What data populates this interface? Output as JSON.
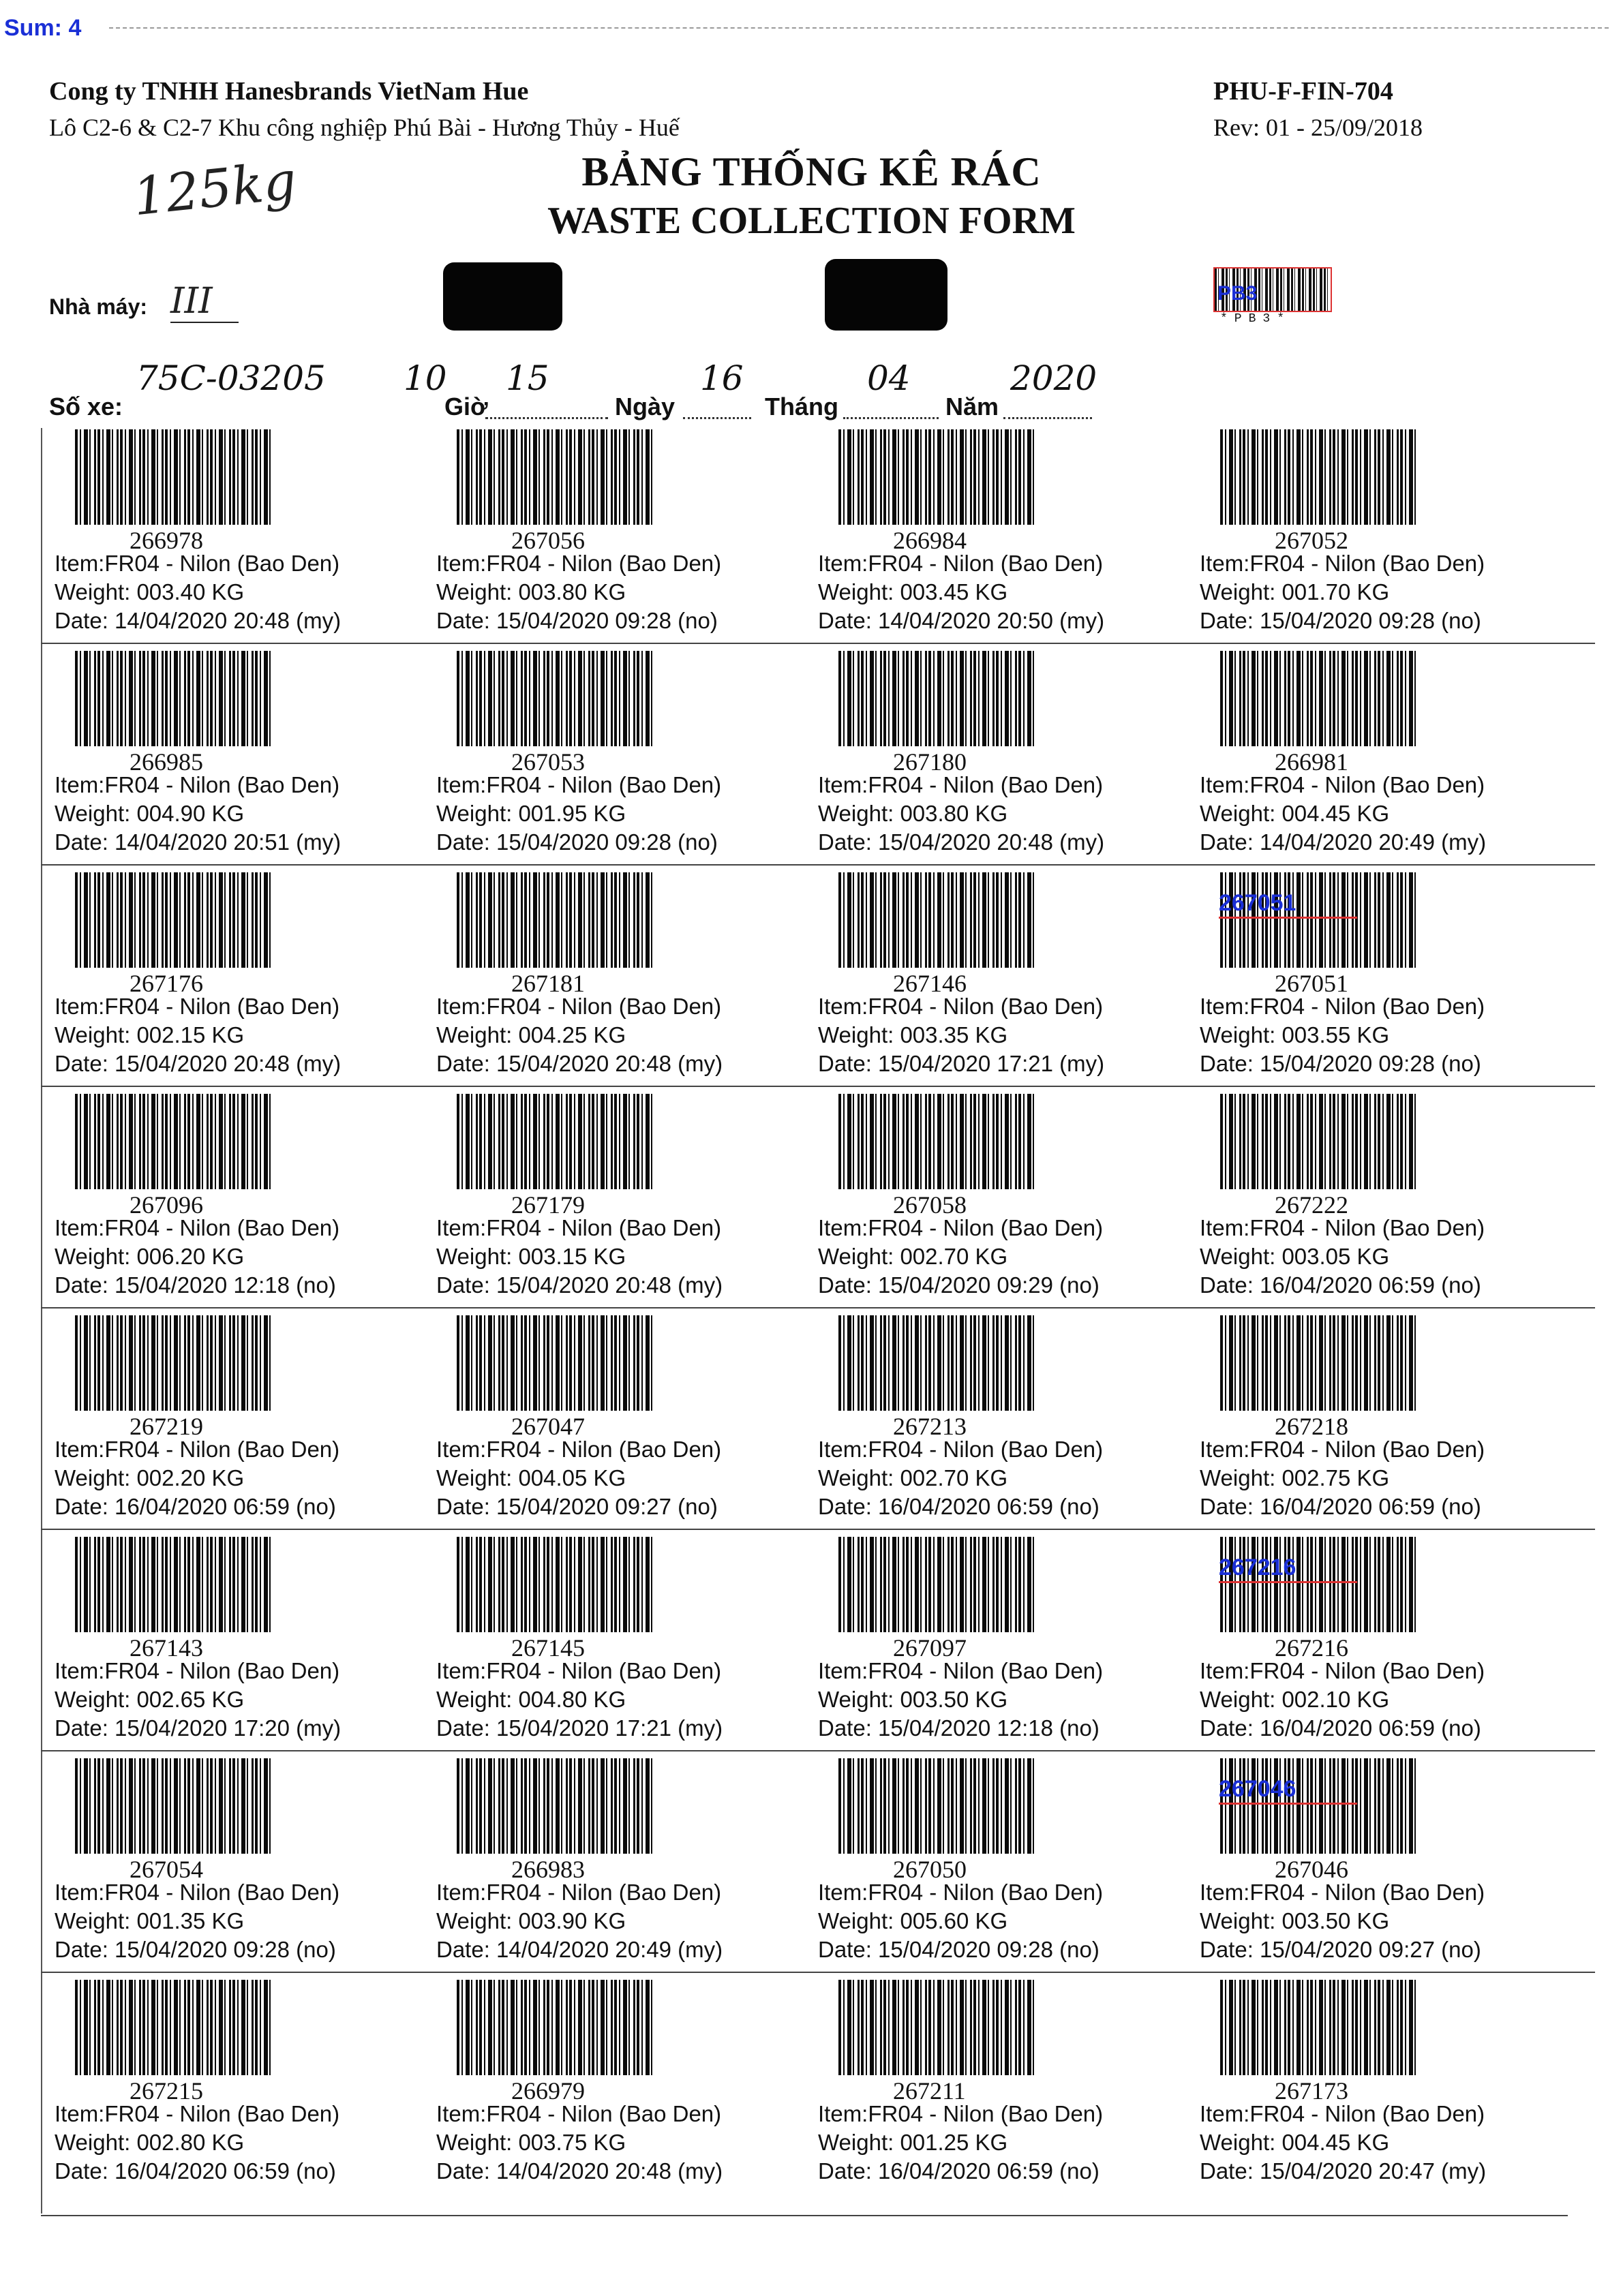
{
  "stamp": {
    "sum": "Sum: 4"
  },
  "header": {
    "company": "Cong ty TNHH Hanesbrands VietNam Hue",
    "address": "Lô C2-6 & C2-7 Khu  công nghiệp Phú Bài - Hương Thủy - Huế",
    "form_code": "PHU-F-FIN-704",
    "revision": "Rev: 01 - 25/09/2018",
    "title_vn": "BẢNG THỐNG KÊ RÁC",
    "title_en": "WASTE COLLECTION FORM",
    "total_weight_handwritten": "125kg"
  },
  "factory": {
    "label": "Nhà máy:",
    "value": "III",
    "barcode_overlay": "PB3",
    "barcode_caption": "*PB3*"
  },
  "vehicle": {
    "plate_label": "Số xe:",
    "plate_value": "75C-03205",
    "hour_value": "10",
    "hour_label": "Giờ",
    "minute_value": "15",
    "day_label": "Ngày",
    "day_value": "16",
    "month_label": "Tháng",
    "month_value": "04",
    "year_label": "Năm",
    "year_value": "2020"
  },
  "labels": [
    {
      "code": "266978",
      "item": "Item:FR04 - Nilon (Bao Den)",
      "weight": "Weight: 003.40 KG",
      "date": "Date: 14/04/2020 20:48 (my)",
      "overlay": ""
    },
    {
      "code": "267056",
      "item": "Item:FR04 - Nilon (Bao Den)",
      "weight": "Weight: 003.80 KG",
      "date": "Date: 15/04/2020 09:28 (no)",
      "overlay": ""
    },
    {
      "code": "266984",
      "item": "Item:FR04 - Nilon (Bao Den)",
      "weight": "Weight: 003.45 KG",
      "date": "Date: 14/04/2020 20:50 (my)",
      "overlay": ""
    },
    {
      "code": "267052",
      "item": "Item:FR04 - Nilon (Bao Den)",
      "weight": "Weight: 001.70 KG",
      "date": "Date: 15/04/2020 09:28 (no)",
      "overlay": ""
    },
    {
      "code": "266985",
      "item": "Item:FR04 - Nilon (Bao Den)",
      "weight": "Weight: 004.90 KG",
      "date": "Date: 14/04/2020 20:51 (my)",
      "overlay": ""
    },
    {
      "code": "267053",
      "item": "Item:FR04 - Nilon (Bao Den)",
      "weight": "Weight: 001.95 KG",
      "date": "Date: 15/04/2020 09:28 (no)",
      "overlay": ""
    },
    {
      "code": "267180",
      "item": "Item:FR04 - Nilon (Bao Den)",
      "weight": "Weight: 003.80 KG",
      "date": "Date: 15/04/2020 20:48 (my)",
      "overlay": ""
    },
    {
      "code": "266981",
      "item": "Item:FR04 - Nilon (Bao Den)",
      "weight": "Weight: 004.45 KG",
      "date": "Date: 14/04/2020 20:49 (my)",
      "overlay": ""
    },
    {
      "code": "267176",
      "item": "Item:FR04 - Nilon (Bao Den)",
      "weight": "Weight: 002.15 KG",
      "date": "Date: 15/04/2020 20:48 (my)",
      "overlay": ""
    },
    {
      "code": "267181",
      "item": "Item:FR04 - Nilon (Bao Den)",
      "weight": "Weight: 004.25 KG",
      "date": "Date: 15/04/2020 20:48 (my)",
      "overlay": ""
    },
    {
      "code": "267146",
      "item": "Item:FR04 - Nilon (Bao Den)",
      "weight": "Weight: 003.35 KG",
      "date": "Date: 15/04/2020 17:21 (my)",
      "overlay": ""
    },
    {
      "code": "267051",
      "item": "Item:FR04 - Nilon (Bao Den)",
      "weight": "Weight: 003.55 KG",
      "date": "Date: 15/04/2020 09:28 (no)",
      "overlay": "267051"
    },
    {
      "code": "267096",
      "item": "Item:FR04 - Nilon (Bao Den)",
      "weight": "Weight: 006.20 KG",
      "date": "Date: 15/04/2020 12:18 (no)",
      "overlay": ""
    },
    {
      "code": "267179",
      "item": "Item:FR04 - Nilon (Bao Den)",
      "weight": "Weight: 003.15 KG",
      "date": "Date: 15/04/2020 20:48 (my)",
      "overlay": ""
    },
    {
      "code": "267058",
      "item": "Item:FR04 - Nilon (Bao Den)",
      "weight": "Weight: 002.70 KG",
      "date": "Date: 15/04/2020 09:29 (no)",
      "overlay": ""
    },
    {
      "code": "267222",
      "item": "Item:FR04 - Nilon (Bao Den)",
      "weight": "Weight: 003.05 KG",
      "date": "Date: 16/04/2020 06:59 (no)",
      "overlay": ""
    },
    {
      "code": "267219",
      "item": "Item:FR04 - Nilon (Bao Den)",
      "weight": "Weight: 002.20 KG",
      "date": "Date: 16/04/2020 06:59 (no)",
      "overlay": ""
    },
    {
      "code": "267047",
      "item": "Item:FR04 - Nilon (Bao Den)",
      "weight": "Weight: 004.05 KG",
      "date": "Date: 15/04/2020 09:27 (no)",
      "overlay": ""
    },
    {
      "code": "267213",
      "item": "Item:FR04 - Nilon (Bao Den)",
      "weight": "Weight: 002.70 KG",
      "date": "Date: 16/04/2020 06:59 (no)",
      "overlay": ""
    },
    {
      "code": "267218",
      "item": "Item:FR04 - Nilon (Bao Den)",
      "weight": "Weight: 002.75 KG",
      "date": "Date: 16/04/2020 06:59 (no)",
      "overlay": ""
    },
    {
      "code": "267143",
      "item": "Item:FR04 - Nilon (Bao Den)",
      "weight": "Weight: 002.65 KG",
      "date": "Date: 15/04/2020 17:20 (my)",
      "overlay": ""
    },
    {
      "code": "267145",
      "item": "Item:FR04 - Nilon (Bao Den)",
      "weight": "Weight: 004.80 KG",
      "date": "Date: 15/04/2020 17:21 (my)",
      "overlay": ""
    },
    {
      "code": "267097",
      "item": "Item:FR04 - Nilon (Bao Den)",
      "weight": "Weight: 003.50 KG",
      "date": "Date: 15/04/2020 12:18 (no)",
      "overlay": ""
    },
    {
      "code": "267216",
      "item": "Item:FR04 - Nilon (Bao Den)",
      "weight": "Weight: 002.10 KG",
      "date": "Date: 16/04/2020 06:59 (no)",
      "overlay": "267216"
    },
    {
      "code": "267054",
      "item": "Item:FR04 - Nilon (Bao Den)",
      "weight": "Weight: 001.35 KG",
      "date": "Date: 15/04/2020 09:28 (no)",
      "overlay": ""
    },
    {
      "code": "266983",
      "item": "Item:FR04 - Nilon (Bao Den)",
      "weight": "Weight: 003.90 KG",
      "date": "Date: 14/04/2020 20:49 (my)",
      "overlay": ""
    },
    {
      "code": "267050",
      "item": "Item:FR04 - Nilon (Bao Den)",
      "weight": "Weight: 005.60 KG",
      "date": "Date: 15/04/2020 09:28 (no)",
      "overlay": ""
    },
    {
      "code": "267046",
      "item": "Item:FR04 - Nilon (Bao Den)",
      "weight": "Weight: 003.50 KG",
      "date": "Date: 15/04/2020 09:27 (no)",
      "overlay": "267046"
    },
    {
      "code": "267215",
      "item": "Item:FR04 - Nilon (Bao Den)",
      "weight": "Weight: 002.80 KG",
      "date": "Date: 16/04/2020 06:59 (no)",
      "overlay": ""
    },
    {
      "code": "266979",
      "item": "Item:FR04 - Nilon (Bao Den)",
      "weight": "Weight: 003.75 KG",
      "date": "Date: 14/04/2020 20:48 (my)",
      "overlay": ""
    },
    {
      "code": "267211",
      "item": "Item:FR04 - Nilon (Bao Den)",
      "weight": "Weight: 001.25 KG",
      "date": "Date: 16/04/2020 06:59 (no)",
      "overlay": ""
    },
    {
      "code": "267173",
      "item": "Item:FR04 - Nilon (Bao Den)",
      "weight": "Weight: 004.45 KG",
      "date": "Date: 15/04/2020 20:47 (my)",
      "overlay": ""
    }
  ],
  "colors": {
    "stamp_blue": "#1a2fd6",
    "highlight_red": "#d33",
    "redaction": "#050505"
  }
}
